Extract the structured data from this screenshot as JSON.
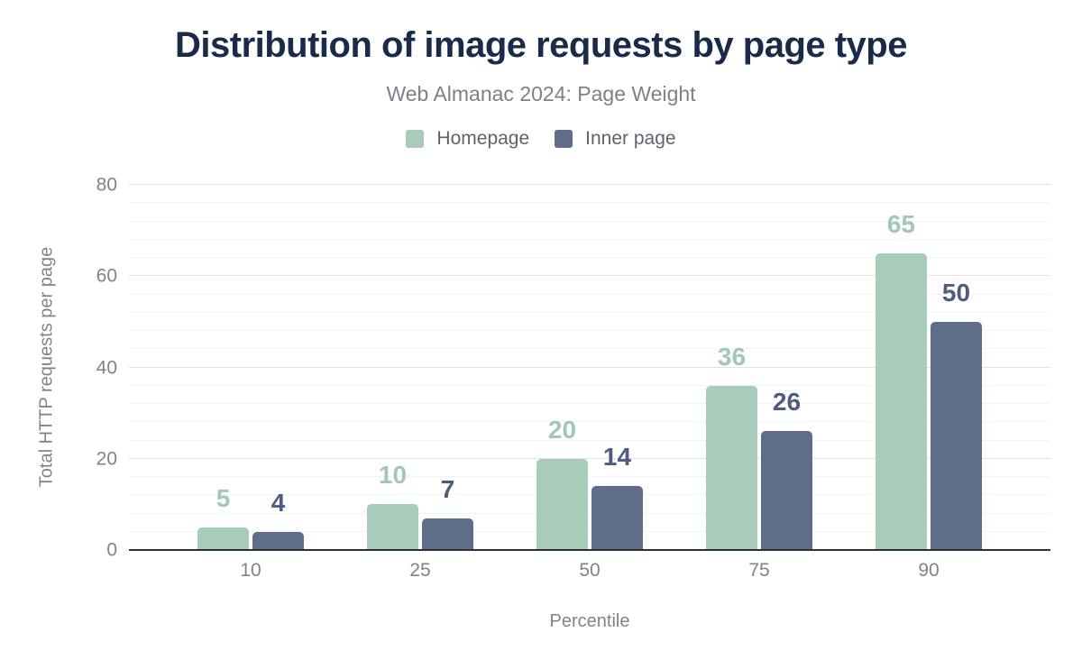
{
  "header": {
    "title": "Distribution of image requests by page type",
    "subtitle": "Web Almanac 2024: Page Weight"
  },
  "legend": {
    "items": [
      {
        "label": "Homepage",
        "color": "#a9cbba"
      },
      {
        "label": "Inner page",
        "color": "#5e6e88"
      }
    ]
  },
  "chart_data": {
    "type": "bar",
    "title": "Distribution of image requests by page type",
    "subtitle": "Web Almanac 2024: Page Weight",
    "categories": [
      "10",
      "25",
      "50",
      "75",
      "90"
    ],
    "series": [
      {
        "name": "Homepage",
        "color": "#a9cbba",
        "label_color": "#a2c7b4",
        "values": [
          5,
          10,
          20,
          36,
          65
        ]
      },
      {
        "name": "Inner page",
        "color": "#5e6e88",
        "label_color": "#4d5c80",
        "values": [
          4,
          7,
          14,
          26,
          50
        ]
      }
    ],
    "xlabel": "Percentile",
    "ylabel": "Total HTTP requests per page",
    "ylim": [
      0,
      80
    ],
    "yticks": [
      0,
      20,
      40,
      60,
      80
    ],
    "minor_gridline_step": 4,
    "grid": true,
    "legend_position": "top",
    "data_labels": true
  },
  "colors": {
    "title_text": "#1a2b4a",
    "subtitle_text": "#7b8189",
    "legend_text": "#5c636d",
    "axis_text": "#7e838c",
    "axis_line": "#2e2f33",
    "major_gridline": "#e2e2e7",
    "minor_gridline": "#f3f3f6",
    "background": "#ffffff"
  }
}
